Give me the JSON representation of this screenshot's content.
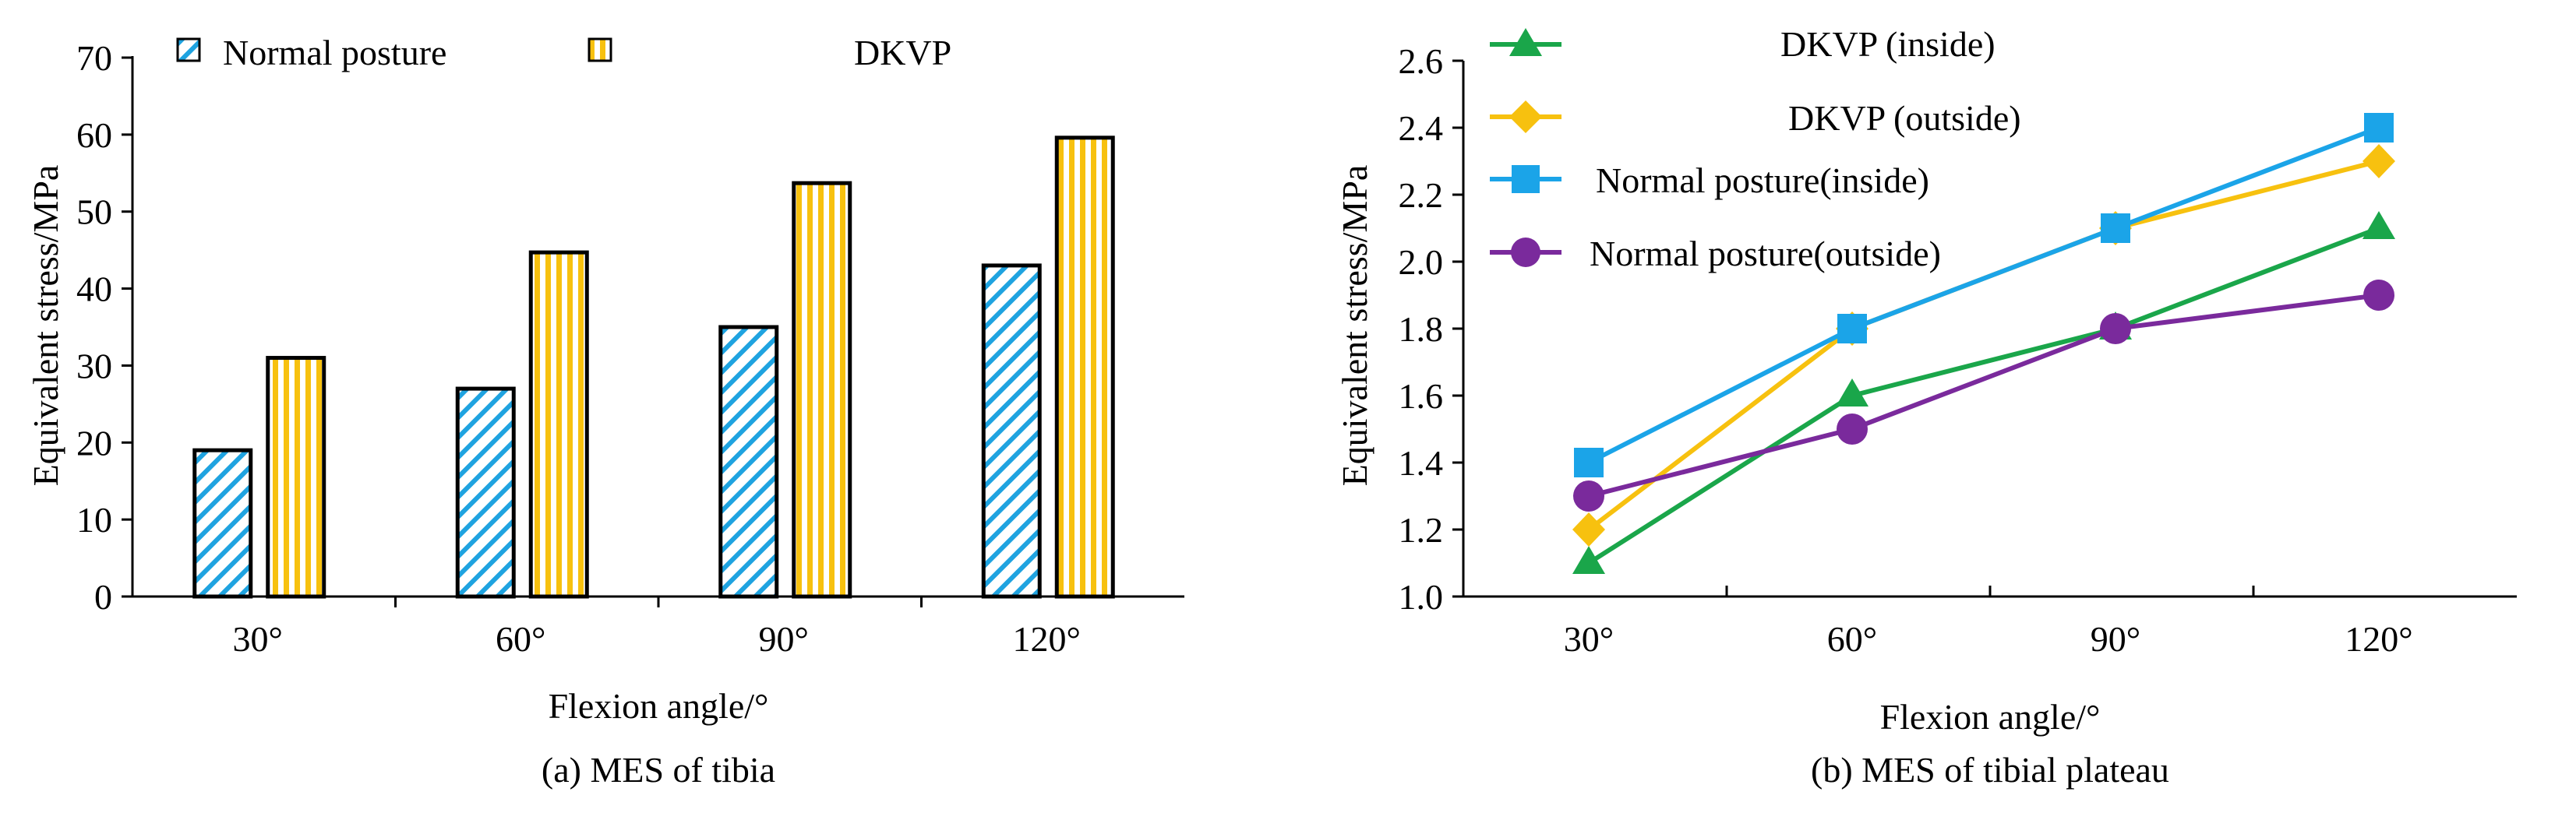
{
  "chart_data": [
    {
      "type": "bar",
      "caption": "(a) MES of tibia",
      "xlabel": "Flexion angle/°",
      "ylabel": "Equivalent stress/MPa",
      "categories": [
        "30°",
        "60°",
        "90°",
        "120°"
      ],
      "yticks": [
        0,
        10,
        20,
        30,
        40,
        50,
        60,
        70
      ],
      "ylim": [
        0,
        70
      ],
      "legend_position": "top",
      "series": [
        {
          "name": "Normal posture",
          "values": [
            19,
            27,
            35,
            43
          ],
          "color": "#1fa3e0",
          "pattern": "diagonal-hatch"
        },
        {
          "name": "DKVP",
          "values": [
            31,
            44.7,
            53.7,
            59.6
          ],
          "color": "#f7c10f",
          "pattern": "vertical-stripes"
        }
      ]
    },
    {
      "type": "line",
      "caption": "(b) MES of tibial plateau",
      "xlabel": "Flexion angle/°",
      "ylabel": "Equivalent stress/MPa",
      "categories": [
        "30°",
        "60°",
        "90°",
        "120°"
      ],
      "yticks": [
        "1.0",
        "1.2",
        "1.4",
        "1.6",
        "1.8",
        "2.0",
        "2.2",
        "2.4",
        "2.6"
      ],
      "ylim": [
        1.0,
        2.6
      ],
      "legend_position": "top-left",
      "series": [
        {
          "name": "DKVP (inside)",
          "values": [
            1.1,
            1.6,
            1.8,
            2.1
          ],
          "color": "#1aa64a",
          "marker": "triangle"
        },
        {
          "name": "DKVP (outside)",
          "values": [
            1.2,
            1.8,
            2.1,
            2.3
          ],
          "color": "#f7c10f",
          "marker": "diamond"
        },
        {
          "name": "Normal posture(inside)",
          "values": [
            1.4,
            1.8,
            2.1,
            2.4
          ],
          "color": "#1ba4e8",
          "marker": "square"
        },
        {
          "name": "Normal posture(outside)",
          "values": [
            1.3,
            1.5,
            1.8,
            1.9
          ],
          "color": "#7a2a9c",
          "marker": "circle"
        }
      ]
    }
  ]
}
